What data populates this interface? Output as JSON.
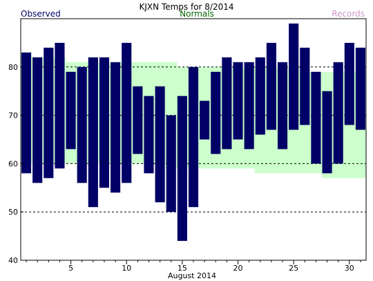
{
  "chart_data": {
    "type": "bar",
    "title": "KJXN Temps for 8/2014",
    "legend": {
      "observed": "Observed",
      "normals": "Normals",
      "records": "Records"
    },
    "xlabel": "August 2014",
    "xlim": [
      1,
      31
    ],
    "ylim": [
      40,
      90
    ],
    "y_ticks": [
      "40",
      "50",
      "60",
      "70",
      "80"
    ],
    "x_ticks": [
      "5",
      "10",
      "15",
      "20",
      "25",
      "30"
    ],
    "grid": "dashed horizontal at 50, 60, 70, 80",
    "colors": {
      "observed": "#000066",
      "normals_fill": "#ccffcc",
      "normals_text": "#006600",
      "records_text": "#cc99cc"
    },
    "days": [
      1,
      2,
      3,
      4,
      5,
      6,
      7,
      8,
      9,
      10,
      11,
      12,
      13,
      14,
      15,
      16,
      17,
      18,
      19,
      20,
      21,
      22,
      23,
      24,
      25,
      26,
      27,
      28,
      29,
      30,
      31
    ],
    "series": [
      {
        "name": "Observed",
        "high": [
          83,
          82,
          84,
          85,
          79,
          80,
          82,
          82,
          81,
          85,
          76,
          74,
          76,
          70,
          74,
          80,
          73,
          79,
          82,
          81,
          81,
          82,
          85,
          81,
          89,
          84,
          79,
          75,
          81,
          85,
          84
        ],
        "low": [
          58,
          56,
          57,
          59,
          63,
          56,
          51,
          55,
          54,
          56,
          62,
          58,
          52,
          50,
          44,
          51,
          65,
          62,
          63,
          65,
          63,
          66,
          67,
          63,
          67,
          68,
          60,
          58,
          60,
          68,
          67
        ]
      },
      {
        "name": "Normals",
        "high": [
          82,
          82,
          82,
          82,
          81,
          81,
          81,
          81,
          81,
          81,
          81,
          81,
          81,
          81,
          80,
          80,
          80,
          80,
          80,
          80,
          80,
          80,
          80,
          80,
          80,
          79,
          79,
          79,
          79,
          79,
          79
        ],
        "low": [
          60,
          60,
          60,
          60,
          60,
          60,
          60,
          60,
          60,
          60,
          60,
          60,
          60,
          59,
          59,
          59,
          59,
          59,
          59,
          59,
          59,
          58,
          58,
          58,
          58,
          58,
          58,
          57,
          57,
          57,
          57
        ]
      }
    ]
  }
}
